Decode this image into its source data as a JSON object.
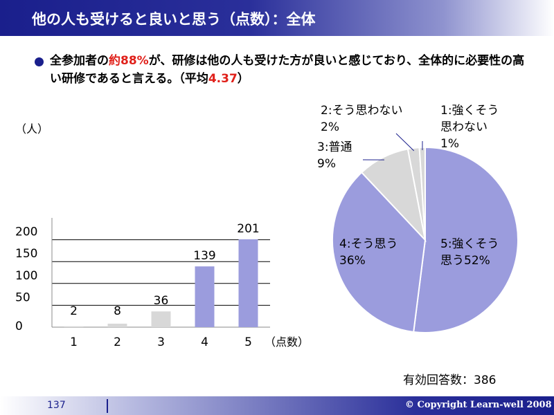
{
  "header": {
    "title": "他の人も受けると良いと思う（点数）：全体"
  },
  "summary": {
    "part1": "全参加者の",
    "highlight1": "約88%",
    "part2": "が、研修は他の人も受けた方が良いと感じており、全体的に必要性の高い研修であると言える。（平均",
    "highlight2": "4.37",
    "part3": "）"
  },
  "respondents_label": "有効回答数：386",
  "footer": {
    "page_number": "137",
    "copyright": "© Copyright Learn-well 2008"
  },
  "colors": {
    "title_bar": "#1a1f8c",
    "highlight_text": "#e0201a",
    "positive_fill": "#9b9cdd",
    "neutral_fill": "#d8d8d8"
  },
  "chart_data": [
    {
      "type": "bar",
      "categories": [
        "1",
        "2",
        "3",
        "4",
        "5"
      ],
      "values": [
        2,
        8,
        36,
        139,
        201
      ],
      "value_labels": [
        "2",
        "8",
        "36",
        "139",
        "201"
      ],
      "bar_colors": [
        "#d8d8d8",
        "#d8d8d8",
        "#d8d8d8",
        "#9b9cdd",
        "#9b9cdd"
      ],
      "ylabel": "（人）",
      "xlabel": "（点数）",
      "ylim": [
        0,
        250
      ],
      "yticks": [
        0,
        50,
        100,
        150,
        200
      ],
      "grid": true
    },
    {
      "type": "pie",
      "slices": [
        {
          "label": "5:強くそう思う",
          "percent": 52,
          "label_lines": [
            "5:強くそう",
            "思う52%"
          ],
          "color": "#9b9cdd"
        },
        {
          "label": "4:そう思う",
          "percent": 36,
          "label_lines": [
            "4:そう思う",
            "36%"
          ],
          "color": "#9b9cdd"
        },
        {
          "label": "3:普通",
          "percent": 9,
          "label_lines": [
            "3:普通",
            "9%"
          ],
          "color": "#d8d8d8"
        },
        {
          "label": "2:そう思わない",
          "percent": 2,
          "label_lines": [
            "2:そう思わない",
            "2%"
          ],
          "color": "#d8d8d8"
        },
        {
          "label": "1:強くそう思わない",
          "percent": 1,
          "label_lines": [
            "1:強くそう",
            "思わない",
            "1%"
          ],
          "color": "#d8d8d8"
        }
      ],
      "start": "12 o'clock",
      "direction": "clockwise"
    }
  ]
}
